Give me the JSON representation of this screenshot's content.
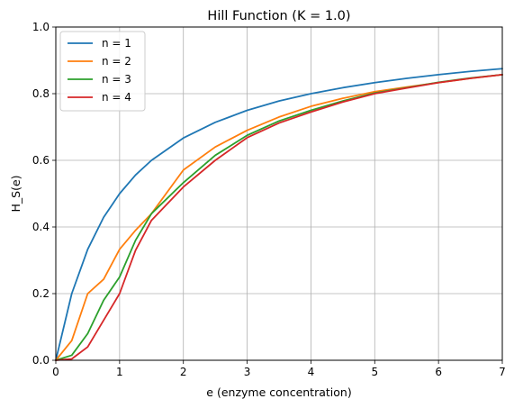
{
  "chart_data": {
    "type": "line",
    "title": "Hill Function (K = 1.0)",
    "xlabel": "e (enzyme concentration)",
    "ylabel": "H_S(e)",
    "xlim": [
      0,
      7
    ],
    "ylim": [
      0,
      1.0
    ],
    "xticks": [
      0,
      1,
      2,
      3,
      4,
      5,
      6,
      7
    ],
    "xtick_labels": [
      "0",
      "1",
      "2",
      "3",
      "4",
      "5",
      "6",
      "7"
    ],
    "yticks": [
      0.0,
      0.2,
      0.4,
      0.6,
      0.8,
      1.0
    ],
    "ytick_labels": [
      "0.0",
      "0.2",
      "0.4",
      "0.6",
      "0.8",
      "1.0"
    ],
    "grid": true,
    "legend_position": "top-left",
    "x": [
      0,
      0.25,
      0.5,
      0.75,
      1.0,
      1.25,
      1.5,
      2.0,
      2.5,
      3.0,
      3.5,
      4.0,
      4.5,
      5.0,
      5.5,
      6.0,
      6.5,
      7.0
    ],
    "series": [
      {
        "name": "n = 1",
        "color": "#1f77b4",
        "values": [
          0,
          0.2,
          0.333,
          0.429,
          0.5,
          0.556,
          0.6,
          0.667,
          0.714,
          0.75,
          0.778,
          0.8,
          0.818,
          0.833,
          0.846,
          0.857,
          0.867,
          0.875
        ]
      },
      {
        "name": "n = 2",
        "color": "#ff7f0e",
        "values": [
          0,
          0.059,
          0.2,
          0.243,
          0.333,
          0.39,
          0.44,
          0.571,
          0.64,
          0.69,
          0.73,
          0.762,
          0.786,
          0.806,
          0.82,
          0.833,
          0.846,
          0.857
        ]
      },
      {
        "name": "n = 3",
        "color": "#2ca02c",
        "values": [
          0,
          0.015,
          0.08,
          0.18,
          0.25,
          0.36,
          0.44,
          0.533,
          0.615,
          0.675,
          0.718,
          0.75,
          0.778,
          0.802,
          0.818,
          0.834,
          0.847,
          0.857
        ]
      },
      {
        "name": "n = 4",
        "color": "#d62728",
        "values": [
          0,
          0.004,
          0.04,
          0.12,
          0.2,
          0.33,
          0.42,
          0.52,
          0.6,
          0.668,
          0.712,
          0.745,
          0.775,
          0.8,
          0.817,
          0.833,
          0.846,
          0.857
        ]
      }
    ]
  }
}
